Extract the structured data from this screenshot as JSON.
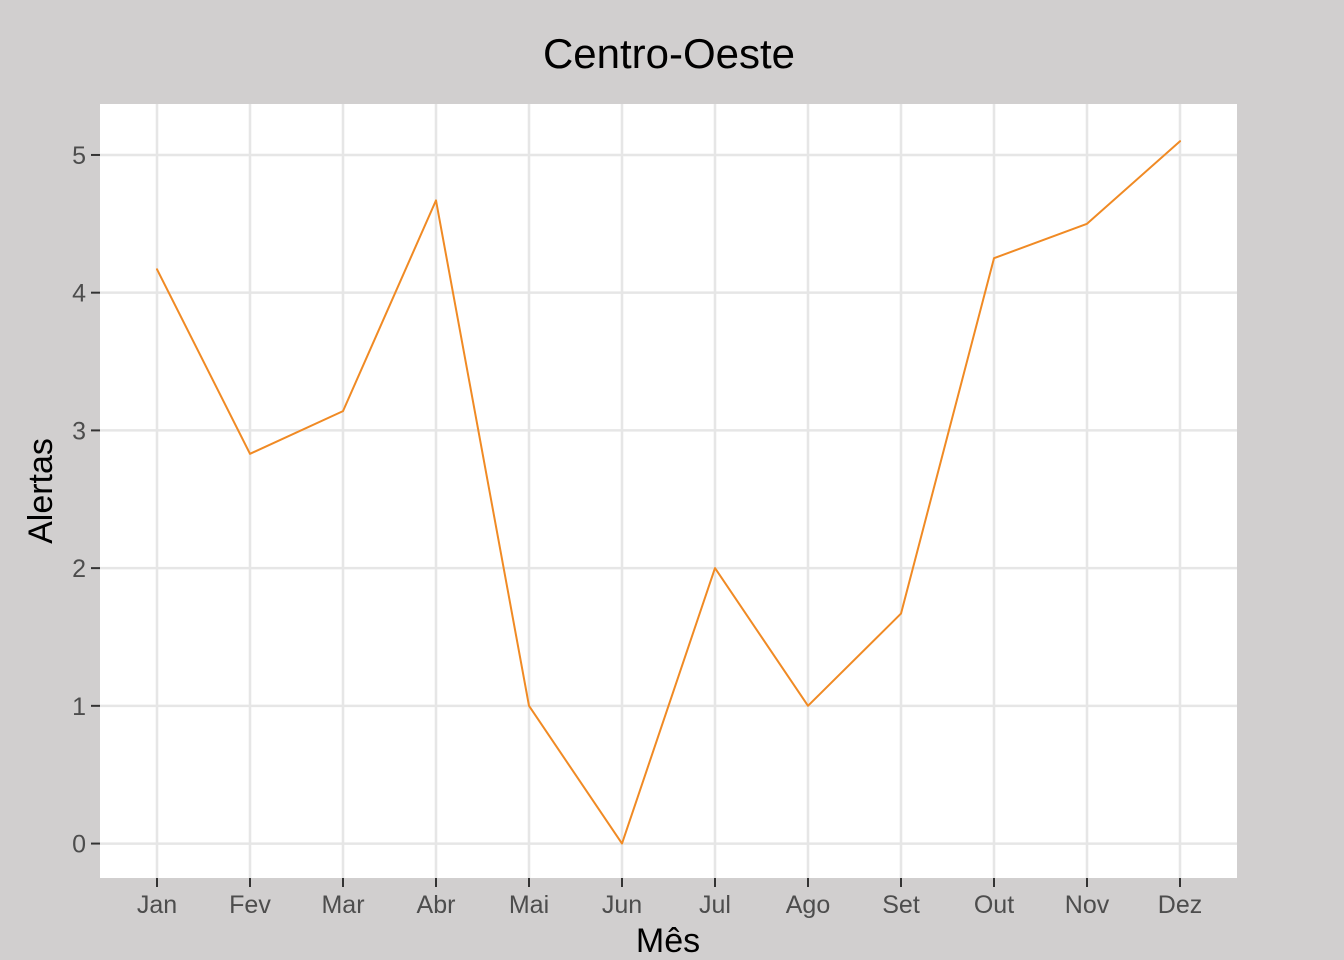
{
  "chart_data": {
    "type": "line",
    "title": "Centro-Oeste",
    "xlabel": "Mês",
    "ylabel": "Alertas",
    "categories": [
      "Jan",
      "Fev",
      "Mar",
      "Abr",
      "Mai",
      "Jun",
      "Jul",
      "Ago",
      "Set",
      "Out",
      "Nov",
      "Dez"
    ],
    "series": [
      {
        "values": [
          4.17,
          2.83,
          3.14,
          4.67,
          1.0,
          0.0,
          2.0,
          1.0,
          1.67,
          4.25,
          4.5,
          5.1
        ],
        "color": "#f08a24"
      }
    ],
    "yticks": [
      0,
      1,
      2,
      3,
      4,
      5
    ],
    "ylim": [
      -0.25,
      5.37
    ],
    "grid": true,
    "legend": "none",
    "colors": {
      "outer_background": "#d1cfcf",
      "panel_background": "#ffffff",
      "gridline": "#e6e6e6",
      "line": "#f08a24"
    }
  }
}
